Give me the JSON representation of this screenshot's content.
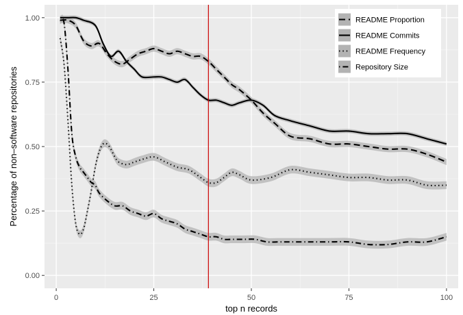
{
  "chart_data": {
    "type": "line",
    "title": "",
    "xlabel": "top n records",
    "ylabel": "Percentage of non–software repositories",
    "xlim": [
      -3,
      103
    ],
    "ylim": [
      -0.05,
      1.05
    ],
    "x_ticks": [
      0,
      25,
      50,
      75,
      100
    ],
    "y_ticks": [
      0.0,
      0.25,
      0.5,
      0.75,
      1.0
    ],
    "x_tick_labels": [
      "0",
      "25",
      "50",
      "75",
      "100"
    ],
    "y_tick_labels": [
      "0.00",
      "0.25",
      "0.50",
      "0.75",
      "1.00"
    ],
    "grid": true,
    "legend_position": "top-right",
    "vline": {
      "x": 39,
      "color": "#cc0000"
    },
    "series": [
      {
        "name": "README Proportion",
        "linetype": "dashed",
        "color": "#000000",
        "ribbon_half_width": 0.012,
        "x": [
          1,
          3,
          5,
          7,
          9,
          11,
          13,
          15,
          17,
          19,
          21,
          23,
          25,
          27,
          29,
          31,
          33,
          35,
          37,
          39,
          41,
          43,
          45,
          47,
          50,
          53,
          56,
          60,
          65,
          70,
          75,
          80,
          85,
          90,
          95,
          100
        ],
        "y": [
          0.99,
          0.99,
          0.97,
          0.91,
          0.89,
          0.9,
          0.86,
          0.83,
          0.82,
          0.84,
          0.86,
          0.87,
          0.88,
          0.87,
          0.86,
          0.87,
          0.86,
          0.85,
          0.85,
          0.83,
          0.8,
          0.77,
          0.74,
          0.72,
          0.68,
          0.63,
          0.59,
          0.54,
          0.53,
          0.51,
          0.51,
          0.5,
          0.49,
          0.49,
          0.47,
          0.44
        ]
      },
      {
        "name": "README Commits",
        "linetype": "solid",
        "color": "#000000",
        "ribbon_half_width": 0.008,
        "x": [
          1,
          3,
          5,
          7,
          10,
          12,
          14,
          16,
          18,
          20,
          22,
          25,
          27,
          29,
          31,
          33,
          35,
          37,
          39,
          41,
          43,
          45,
          47,
          50,
          53,
          56,
          60,
          65,
          70,
          75,
          80,
          85,
          90,
          95,
          100
        ],
        "y": [
          1.0,
          1.0,
          1.0,
          0.99,
          0.97,
          0.9,
          0.85,
          0.87,
          0.83,
          0.8,
          0.77,
          0.77,
          0.77,
          0.76,
          0.75,
          0.76,
          0.73,
          0.7,
          0.68,
          0.68,
          0.67,
          0.66,
          0.67,
          0.68,
          0.66,
          0.62,
          0.6,
          0.58,
          0.56,
          0.56,
          0.55,
          0.55,
          0.55,
          0.53,
          0.51
        ]
      },
      {
        "name": "README Frequency",
        "linetype": "dotted",
        "color": "#000000",
        "ribbon_half_width": 0.015,
        "x": [
          1,
          2,
          3,
          4,
          5,
          6,
          7,
          8,
          9,
          10,
          11,
          12,
          13,
          14,
          15,
          16,
          18,
          20,
          22,
          25,
          28,
          31,
          34,
          37,
          39,
          41,
          43,
          45,
          47,
          50,
          55,
          60,
          65,
          70,
          75,
          80,
          85,
          90,
          95,
          100
        ],
        "y": [
          0.92,
          0.82,
          0.6,
          0.35,
          0.2,
          0.16,
          0.18,
          0.25,
          0.33,
          0.42,
          0.48,
          0.51,
          0.51,
          0.49,
          0.46,
          0.44,
          0.43,
          0.44,
          0.45,
          0.46,
          0.44,
          0.42,
          0.41,
          0.38,
          0.36,
          0.36,
          0.38,
          0.4,
          0.39,
          0.37,
          0.38,
          0.41,
          0.4,
          0.39,
          0.38,
          0.38,
          0.37,
          0.37,
          0.35,
          0.35
        ]
      },
      {
        "name": "Repository Size",
        "linetype": "dotdash",
        "color": "#000000",
        "ribbon_half_width": 0.015,
        "x": [
          1,
          2,
          3,
          4,
          5,
          6,
          7,
          8,
          9,
          10,
          11,
          13,
          15,
          17,
          19,
          21,
          23,
          25,
          27,
          29,
          31,
          33,
          35,
          37,
          39,
          41,
          43,
          45,
          48,
          51,
          54,
          57,
          60,
          65,
          70,
          75,
          80,
          85,
          90,
          95,
          100
        ],
        "y": [
          0.99,
          0.98,
          0.8,
          0.55,
          0.46,
          0.42,
          0.4,
          0.38,
          0.36,
          0.35,
          0.32,
          0.29,
          0.27,
          0.27,
          0.25,
          0.24,
          0.23,
          0.24,
          0.22,
          0.21,
          0.2,
          0.18,
          0.17,
          0.16,
          0.15,
          0.15,
          0.14,
          0.14,
          0.14,
          0.14,
          0.13,
          0.13,
          0.13,
          0.13,
          0.13,
          0.13,
          0.12,
          0.12,
          0.13,
          0.13,
          0.15
        ]
      }
    ]
  }
}
